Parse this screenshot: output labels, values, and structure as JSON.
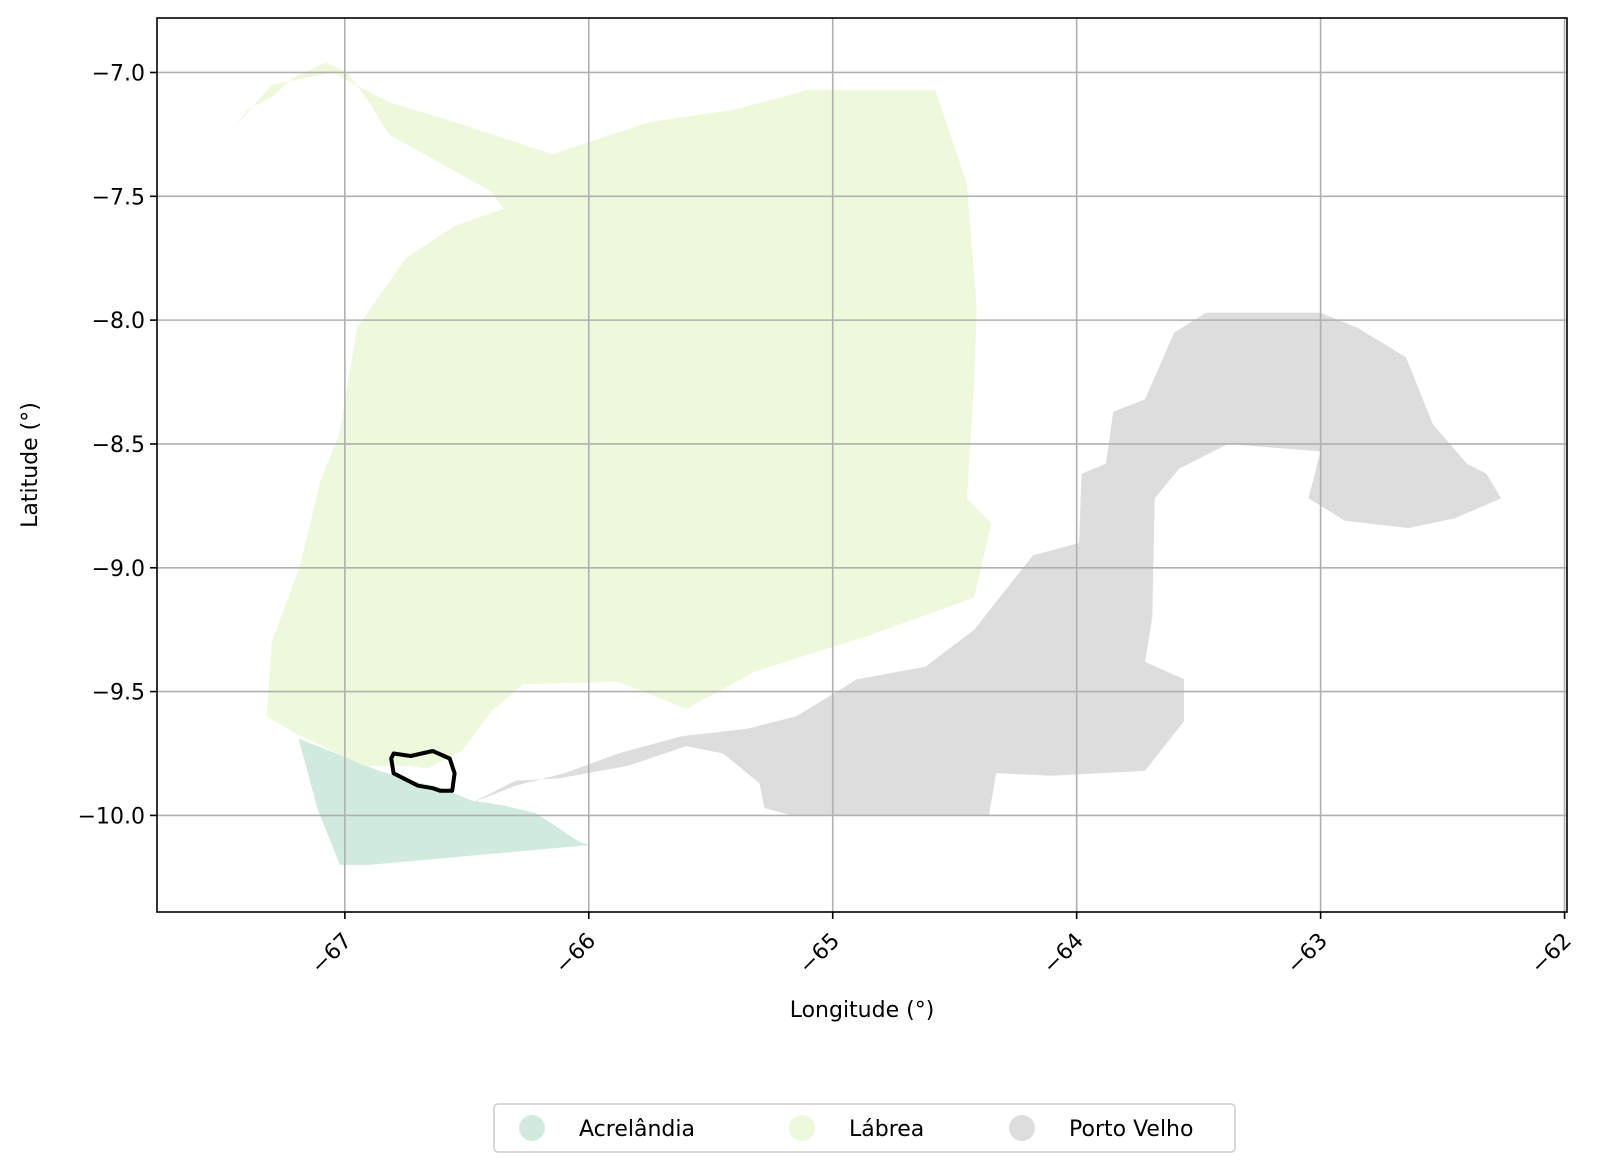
{
  "map": {
    "type": "choropleth",
    "xlabel": "Longitude (°)",
    "ylabel": "Latitude (°)",
    "xlim": [
      -67.77,
      -61.99
    ],
    "ylim": [
      -10.39,
      -6.78
    ],
    "grid": true,
    "legend_placement": "bottom-center",
    "x_ticks": [
      {
        "value": -67,
        "label": "−67"
      },
      {
        "value": -66,
        "label": "−66"
      },
      {
        "value": -65,
        "label": "−65"
      },
      {
        "value": -64,
        "label": "−64"
      },
      {
        "value": -63,
        "label": "−63"
      },
      {
        "value": -62,
        "label": "−62"
      }
    ],
    "y_ticks": [
      {
        "value": -7.0,
        "label": "−7.0"
      },
      {
        "value": -7.5,
        "label": "−7.5"
      },
      {
        "value": -8.0,
        "label": "−8.0"
      },
      {
        "value": -8.5,
        "label": "−8.5"
      },
      {
        "value": -9.0,
        "label": "−9.0"
      },
      {
        "value": -9.5,
        "label": "−9.5"
      },
      {
        "value": -10.0,
        "label": "−10.0"
      }
    ],
    "regions": [
      {
        "name": "Acrelândia",
        "color": "#d0ebdd",
        "outline": [
          [
            -67.19,
            -9.69
          ],
          [
            -67.06,
            -9.74
          ],
          [
            -66.86,
            -9.82
          ],
          [
            -66.72,
            -9.86
          ],
          [
            -66.6,
            -9.89
          ],
          [
            -66.48,
            -9.94
          ],
          [
            -66.41,
            -9.95
          ],
          [
            -66.35,
            -9.96
          ],
          [
            -66.22,
            -9.99
          ],
          [
            -66.14,
            -10.04
          ],
          [
            -66.05,
            -10.1
          ],
          [
            -66.0,
            -10.12
          ],
          [
            -66.9,
            -10.2
          ],
          [
            -67.02,
            -10.2
          ],
          [
            -67.11,
            -9.98
          ],
          [
            -67.19,
            -9.69
          ]
        ]
      },
      {
        "name": "Lábrea",
        "color": "#eef8db",
        "outline": [
          [
            -67.45,
            -7.22
          ],
          [
            -67.4,
            -7.15
          ],
          [
            -67.3,
            -7.1
          ],
          [
            -67.21,
            -7.02
          ],
          [
            -67.08,
            -6.96
          ],
          [
            -66.99,
            -7.0
          ],
          [
            -66.9,
            -7.12
          ],
          [
            -66.82,
            -7.25
          ],
          [
            -66.6,
            -7.37
          ],
          [
            -66.4,
            -7.48
          ],
          [
            -66.35,
            -7.55
          ],
          [
            -66.55,
            -7.62
          ],
          [
            -66.75,
            -7.75
          ],
          [
            -66.95,
            -8.03
          ],
          [
            -67.02,
            -8.45
          ],
          [
            -67.1,
            -8.65
          ],
          [
            -67.18,
            -8.98
          ],
          [
            -67.3,
            -9.3
          ],
          [
            -67.32,
            -9.6
          ],
          [
            -67.2,
            -9.67
          ],
          [
            -66.92,
            -9.8
          ],
          [
            -66.74,
            -9.8
          ],
          [
            -66.66,
            -9.81
          ],
          [
            -66.52,
            -9.74
          ],
          [
            -66.4,
            -9.58
          ],
          [
            -66.27,
            -9.47
          ],
          [
            -65.88,
            -9.46
          ],
          [
            -65.6,
            -9.57
          ],
          [
            -65.32,
            -9.42
          ],
          [
            -65.1,
            -9.35
          ],
          [
            -64.87,
            -9.28
          ],
          [
            -64.42,
            -9.12
          ],
          [
            -64.35,
            -8.82
          ],
          [
            -64.45,
            -8.72
          ],
          [
            -64.42,
            -8.25
          ],
          [
            -64.41,
            -7.95
          ],
          [
            -64.45,
            -7.45
          ],
          [
            -64.58,
            -7.07
          ],
          [
            -65.1,
            -7.07
          ],
          [
            -65.4,
            -7.15
          ],
          [
            -65.75,
            -7.2
          ],
          [
            -66.15,
            -7.33
          ],
          [
            -66.55,
            -7.2
          ],
          [
            -66.82,
            -7.12
          ],
          [
            -67.05,
            -7.0
          ],
          [
            -67.3,
            -7.05
          ],
          [
            -67.45,
            -7.22
          ]
        ]
      },
      {
        "name": "Porto Velho",
        "color": "#dddddd",
        "outline": [
          [
            -66.48,
            -9.95
          ],
          [
            -66.3,
            -9.88
          ],
          [
            -66.1,
            -9.83
          ],
          [
            -65.88,
            -9.75
          ],
          [
            -65.62,
            -9.68
          ],
          [
            -65.35,
            -9.65
          ],
          [
            -65.15,
            -9.6
          ],
          [
            -64.9,
            -9.45
          ],
          [
            -64.62,
            -9.4
          ],
          [
            -64.42,
            -9.25
          ],
          [
            -64.18,
            -8.95
          ],
          [
            -63.99,
            -8.9
          ],
          [
            -63.98,
            -8.62
          ],
          [
            -63.88,
            -8.58
          ],
          [
            -63.85,
            -8.37
          ],
          [
            -63.72,
            -8.32
          ],
          [
            -63.6,
            -8.05
          ],
          [
            -63.47,
            -7.97
          ],
          [
            -63.0,
            -7.97
          ],
          [
            -62.85,
            -8.03
          ],
          [
            -62.65,
            -8.15
          ],
          [
            -62.54,
            -8.42
          ],
          [
            -62.4,
            -8.58
          ],
          [
            -62.32,
            -8.62
          ],
          [
            -62.26,
            -8.72
          ],
          [
            -62.45,
            -8.8
          ],
          [
            -62.64,
            -8.84
          ],
          [
            -62.9,
            -8.81
          ],
          [
            -63.05,
            -8.72
          ],
          [
            -63.0,
            -8.53
          ],
          [
            -63.38,
            -8.5
          ],
          [
            -63.58,
            -8.6
          ],
          [
            -63.68,
            -8.72
          ],
          [
            -63.69,
            -9.2
          ],
          [
            -63.72,
            -9.38
          ],
          [
            -63.56,
            -9.45
          ],
          [
            -63.56,
            -9.62
          ],
          [
            -63.72,
            -9.82
          ],
          [
            -64.1,
            -9.84
          ],
          [
            -64.33,
            -9.83
          ],
          [
            -64.36,
            -10.0
          ],
          [
            -65.17,
            -10.0
          ],
          [
            -65.28,
            -9.97
          ],
          [
            -65.3,
            -9.87
          ],
          [
            -65.45,
            -9.75
          ],
          [
            -65.6,
            -9.72
          ],
          [
            -65.84,
            -9.8
          ],
          [
            -66.12,
            -9.85
          ],
          [
            -66.3,
            -9.86
          ],
          [
            -66.48,
            -9.95
          ]
        ]
      }
    ],
    "highlight": {
      "outline": [
        [
          -66.8,
          -9.75
        ],
        [
          -66.73,
          -9.76
        ],
        [
          -66.64,
          -9.74
        ],
        [
          -66.57,
          -9.77
        ],
        [
          -66.55,
          -9.83
        ],
        [
          -66.56,
          -9.9
        ],
        [
          -66.61,
          -9.9
        ],
        [
          -66.64,
          -9.89
        ],
        [
          -66.7,
          -9.88
        ],
        [
          -66.8,
          -9.83
        ],
        [
          -66.81,
          -9.77
        ],
        [
          -66.8,
          -9.75
        ]
      ],
      "stroke": "#000000"
    },
    "legend_items": [
      "Acrelândia",
      "Lábrea",
      "Porto Velho"
    ]
  }
}
